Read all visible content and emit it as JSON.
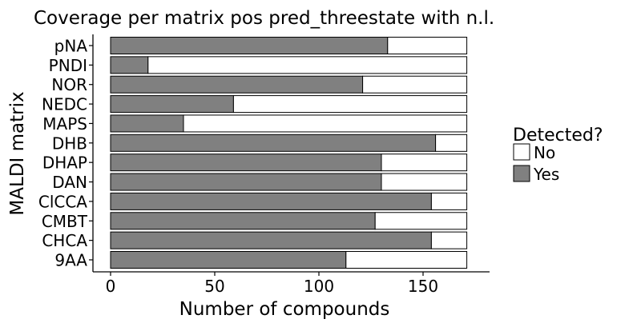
{
  "chart_data": {
    "type": "bar",
    "orientation": "horizontal",
    "stacked": true,
    "title": "Coverage per matrix pos pred_threestate with n.l.",
    "xlabel": "Number of compounds",
    "ylabel": "MALDI matrix",
    "xlim": [
      0,
      172
    ],
    "xticks": [
      0,
      50,
      100,
      150
    ],
    "grid": false,
    "categories": [
      "pNA",
      "PNDI",
      "NOR",
      "NEDC",
      "MAPS",
      "DHB",
      "DHAP",
      "DAN",
      "ClCCA",
      "CMBT",
      "CHCA",
      "9AA"
    ],
    "total": 171,
    "series": [
      {
        "name": "Yes",
        "color": "#808080",
        "values": [
          133,
          18,
          121,
          59,
          35,
          156,
          130,
          130,
          154,
          127,
          154,
          113
        ]
      },
      {
        "name": "No",
        "color": "#ffffff",
        "values": [
          38,
          153,
          50,
          112,
          136,
          15,
          41,
          41,
          17,
          44,
          17,
          58
        ]
      }
    ],
    "legend": {
      "title": "Detected?",
      "placement": "right",
      "entries": [
        {
          "label": "No",
          "color": "#ffffff"
        },
        {
          "label": "Yes",
          "color": "#808080"
        }
      ]
    }
  }
}
